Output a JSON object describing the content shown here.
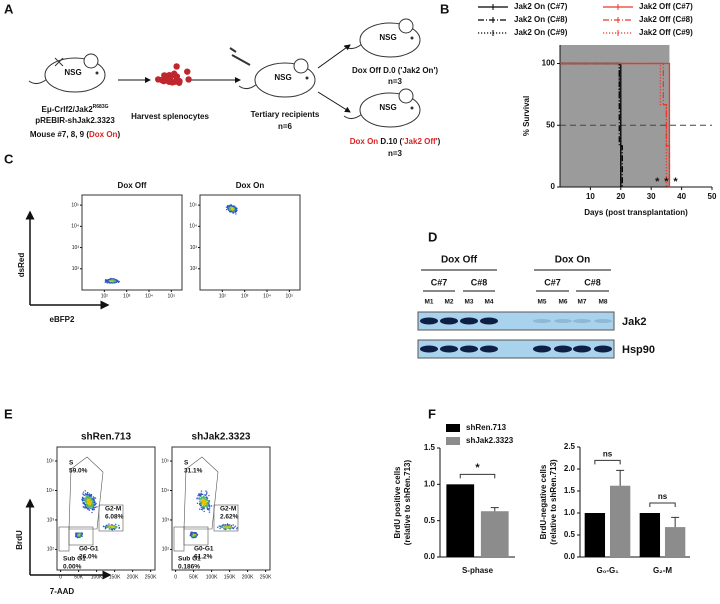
{
  "panel_labels": [
    "A",
    "B",
    "C",
    "D",
    "E",
    "F"
  ],
  "schematic": {
    "nsg": "NSG",
    "donor_line1": "Eμ-Crlf2/Jak2",
    "donor_sup": "R683G",
    "donor_line2": "pREBIR-shJak2.3323",
    "donor_line3": [
      "Mouse #7, 8, 9 (",
      "Dox On",
      ")"
    ],
    "harvest": "Harvest splenocytes",
    "recipients": "Tertiary recipients",
    "recipients_n": "n=6",
    "arm_off": "Dox Off D.0 ('Jak2 On')",
    "arm_off_n": "n=3",
    "arm_on": [
      "Dox On",
      " D.10 (",
      "'Jak2 Off'",
      ")"
    ],
    "arm_on_n": "n=3"
  },
  "chart_data": [
    {
      "type": "line",
      "step": true,
      "xlabel": "Days (post transplantation)",
      "ylabel": "% Survival",
      "xlim": [
        0,
        50
      ],
      "ylim": [
        0,
        115
      ],
      "xticks": [
        10,
        20,
        30,
        40,
        50
      ],
      "yticks": [
        0,
        50,
        100
      ],
      "shade_xlim": [
        0,
        36
      ],
      "hline": 50,
      "series": [
        {
          "name": "Jak2 On (C#7)",
          "color": "#000000",
          "dash": "solid",
          "x": [
            0,
            20
          ],
          "values": [
            100,
            0
          ]
        },
        {
          "name": "Jak2 On (C#8)",
          "color": "#000000",
          "dash": "dashdot",
          "x": [
            0,
            19.5,
            20.5
          ],
          "values": [
            100,
            33.3,
            0
          ]
        },
        {
          "name": "Jak2 On (C#9)",
          "color": "#000000",
          "dash": "dotted",
          "x": [
            0,
            19.5,
            20
          ],
          "values": [
            100,
            66.7,
            0
          ]
        },
        {
          "name": "Jak2 Off (C#7)",
          "color": "#e8392b",
          "dash": "solid",
          "x": [
            0,
            36
          ],
          "values": [
            100,
            0
          ]
        },
        {
          "name": "Jak2 Off (C#8)",
          "color": "#e8392b",
          "dash": "dashdot",
          "x": [
            0,
            34,
            35,
            36
          ],
          "values": [
            100,
            66.7,
            33.3,
            0
          ]
        },
        {
          "name": "Jak2 Off (C#9)",
          "color": "#e8392b",
          "dash": "dotted",
          "x": [
            0,
            33,
            35
          ],
          "values": [
            100,
            66.7,
            0
          ]
        }
      ],
      "annotations": [
        {
          "text": "*",
          "x": 32
        },
        {
          "text": "*",
          "x": 35
        },
        {
          "text": "*",
          "x": 38
        }
      ]
    },
    {
      "type": "bar",
      "ylabel": [
        "BrdU positive cells",
        "(relative to shRen.713)"
      ],
      "categories": [
        "S-phase"
      ],
      "ylim": [
        0,
        1.5
      ],
      "yticks": [
        {
          "value": 0,
          "label": "0.0"
        },
        {
          "value": 0.5,
          "label": "0.5"
        },
        {
          "value": 1,
          "label": "1.0"
        },
        {
          "value": 1.5,
          "label": "1.5"
        }
      ],
      "series": [
        {
          "name": "shRen.713",
          "color": "#000000",
          "values": [
            1.0
          ]
        },
        {
          "name": "shJak2.3323",
          "color": "#8c8c8c",
          "values": [
            0.63
          ],
          "errors": [
            0.05
          ]
        }
      ],
      "significance": [
        "*"
      ]
    },
    {
      "type": "bar",
      "ylabel": [
        "BrdU-negative cells",
        "(relative to shRen.713)"
      ],
      "categories": [
        "G₀-G₁",
        "G₂-M"
      ],
      "ylim": [
        0,
        2.5
      ],
      "yticks": [
        {
          "value": 0,
          "label": "0.0"
        },
        {
          "value": 0.5,
          "label": "0.5"
        },
        {
          "value": 1,
          "label": "1.0"
        },
        {
          "value": 1.5,
          "label": "1.5"
        },
        {
          "value": 2,
          "label": "2.0"
        },
        {
          "value": 2.5,
          "label": "2.5"
        }
      ],
      "series": [
        {
          "color": "#000000",
          "values": [
            1.0,
            1.0
          ]
        },
        {
          "color": "#8c8c8c",
          "values": [
            1.62,
            0.68
          ],
          "errors": [
            0.35,
            0.22
          ]
        }
      ],
      "significance": [
        "ns",
        "ns"
      ]
    }
  ],
  "flow_c": {
    "titles": [
      "Dox Off",
      "Dox On"
    ],
    "ylabel": "dsRed",
    "xlabel": "eBFP2",
    "scale": "log",
    "lim": [
      10,
      300000
    ],
    "ticks": [
      {
        "value": 100,
        "label": "10²"
      },
      {
        "value": 1000,
        "label": "10³"
      },
      {
        "value": 10000,
        "label": "10⁴"
      },
      {
        "value": 100000,
        "label": "10⁵"
      }
    ]
  },
  "western": {
    "groups": [
      {
        "label": "Dox Off",
        "clones": [
          "C#7",
          "C#8"
        ]
      },
      {
        "label": "Dox On",
        "clones": [
          "C#7",
          "C#8"
        ]
      }
    ],
    "lanes": [
      "M1",
      "M2",
      "M3",
      "M4",
      "M5",
      "M6",
      "M7",
      "M8"
    ],
    "proteins": [
      "Jak2",
      "Hsp90"
    ]
  },
  "flow_e": {
    "ylabel": "BrdU",
    "xlabel": "7-AAD",
    "xlim": [
      -10000,
      262144
    ],
    "xticks": [
      0,
      {
        "value": 50000,
        "label": "50K"
      },
      {
        "value": 100000,
        "label": "100K"
      },
      {
        "value": 150000,
        "label": "150K"
      },
      {
        "value": 200000,
        "label": "200K"
      },
      {
        "value": 250000,
        "label": "250K"
      }
    ],
    "yscale": "log",
    "ylim": [
      20,
      300000
    ],
    "yticks": [
      {
        "value": 100,
        "label": "10²"
      },
      {
        "value": 1000,
        "label": "10³"
      },
      {
        "value": 10000,
        "label": "10⁴"
      },
      {
        "value": 100000,
        "label": "10⁵"
      }
    ],
    "plots": [
      {
        "title": "shRen.713",
        "gates": [
          {
            "name": "S",
            "pct": "59.0%"
          },
          {
            "name": "G2-M",
            "pct": "6.08%"
          },
          {
            "name": "G0-G1",
            "pct": "26.0%"
          },
          {
            "name": "Sub G1",
            "pct": "0.00%"
          }
        ]
      },
      {
        "title": "shJak2.3323",
        "gates": [
          {
            "name": "S",
            "pct": "31.1%"
          },
          {
            "name": "G2-M",
            "pct": "2.62%"
          },
          {
            "name": "G0-G1",
            "pct": "61.2%"
          },
          {
            "name": "Sub G1",
            "pct": "0.186%"
          }
        ]
      }
    ]
  }
}
